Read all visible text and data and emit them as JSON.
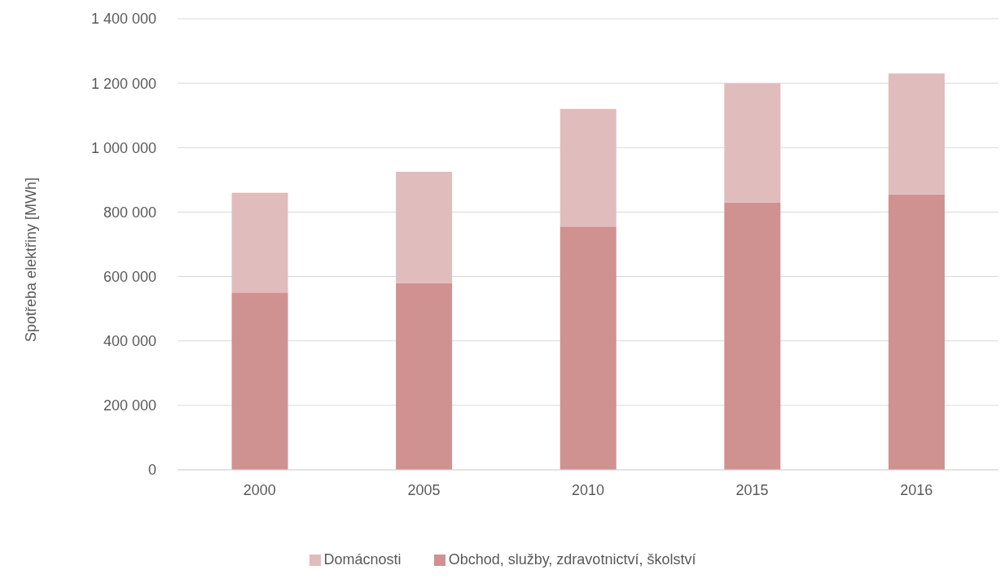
{
  "chart_data": {
    "type": "bar",
    "stacked": true,
    "ylabel": "Spotřeba elektřiny [MWh]",
    "categories": [
      "2000",
      "2005",
      "2010",
      "2015",
      "2016"
    ],
    "series": [
      {
        "name": "Obchod, služby, zdravotnictví, školství",
        "color": "#d09191",
        "values": [
          550000,
          580000,
          755000,
          830000,
          855000
        ]
      },
      {
        "name": "Domácnosti",
        "color": "#e1bcbc",
        "values": [
          310000,
          345000,
          365000,
          370000,
          375000
        ]
      }
    ],
    "ylim": [
      0,
      1400000
    ],
    "yticks": [
      {
        "value": 0,
        "label": "0"
      },
      {
        "value": 200000,
        "label": "200 000"
      },
      {
        "value": 400000,
        "label": "400 000"
      },
      {
        "value": 600000,
        "label": "600 000"
      },
      {
        "value": 800000,
        "label": "800 000"
      },
      {
        "value": 1000000,
        "label": "1 000 000"
      },
      {
        "value": 1200000,
        "label": "1 200 000"
      },
      {
        "value": 1400000,
        "label": "1 400 000"
      }
    ],
    "grid": "y",
    "legend": "bottom"
  }
}
